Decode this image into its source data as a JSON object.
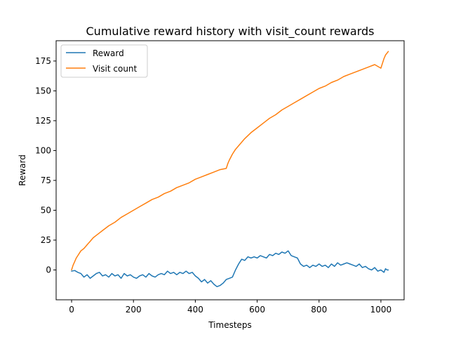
{
  "chart_data": {
    "type": "line",
    "title": "Cumulative reward history with visit_count rewards",
    "xlabel": "Timesteps",
    "ylabel": "Reward",
    "xlim": [
      -50,
      1075
    ],
    "ylim": [
      -25,
      192
    ],
    "xticks": [
      0,
      200,
      400,
      600,
      800,
      1000
    ],
    "yticks": [
      0,
      25,
      50,
      75,
      100,
      125,
      150,
      175
    ],
    "grid": false,
    "legend_position": "top-left",
    "series": [
      {
        "name": "Reward",
        "color": "#1f77b4",
        "points": [
          [
            0,
            -1
          ],
          [
            10,
            -0.5
          ],
          [
            20,
            -2
          ],
          [
            30,
            -3
          ],
          [
            40,
            -6
          ],
          [
            50,
            -4
          ],
          [
            60,
            -7
          ],
          [
            70,
            -5
          ],
          [
            80,
            -3
          ],
          [
            90,
            -2
          ],
          [
            100,
            -5
          ],
          [
            110,
            -4
          ],
          [
            120,
            -6
          ],
          [
            130,
            -3
          ],
          [
            140,
            -5
          ],
          [
            150,
            -4
          ],
          [
            160,
            -7
          ],
          [
            170,
            -3
          ],
          [
            180,
            -5
          ],
          [
            190,
            -4
          ],
          [
            200,
            -6
          ],
          [
            210,
            -7
          ],
          [
            220,
            -5
          ],
          [
            230,
            -4
          ],
          [
            240,
            -6
          ],
          [
            250,
            -3
          ],
          [
            260,
            -5
          ],
          [
            270,
            -6
          ],
          [
            280,
            -4
          ],
          [
            290,
            -3
          ],
          [
            300,
            -4
          ],
          [
            310,
            -1
          ],
          [
            320,
            -3
          ],
          [
            330,
            -2
          ],
          [
            340,
            -4
          ],
          [
            350,
            -2
          ],
          [
            360,
            -3
          ],
          [
            370,
            -1
          ],
          [
            380,
            -3
          ],
          [
            390,
            -2
          ],
          [
            400,
            -5
          ],
          [
            410,
            -7
          ],
          [
            420,
            -10
          ],
          [
            430,
            -8
          ],
          [
            440,
            -11
          ],
          [
            450,
            -9
          ],
          [
            460,
            -12
          ],
          [
            470,
            -14
          ],
          [
            480,
            -13
          ],
          [
            490,
            -11
          ],
          [
            500,
            -8
          ],
          [
            510,
            -7
          ],
          [
            520,
            -6
          ],
          [
            530,
            0
          ],
          [
            540,
            5
          ],
          [
            550,
            9
          ],
          [
            560,
            8
          ],
          [
            570,
            11
          ],
          [
            580,
            10
          ],
          [
            590,
            11
          ],
          [
            600,
            10
          ],
          [
            610,
            12
          ],
          [
            620,
            11
          ],
          [
            630,
            10
          ],
          [
            640,
            13
          ],
          [
            650,
            12
          ],
          [
            660,
            14
          ],
          [
            670,
            13
          ],
          [
            680,
            15
          ],
          [
            690,
            14
          ],
          [
            700,
            16
          ],
          [
            710,
            12
          ],
          [
            720,
            11
          ],
          [
            730,
            10
          ],
          [
            740,
            5
          ],
          [
            750,
            3
          ],
          [
            760,
            4
          ],
          [
            770,
            2
          ],
          [
            780,
            4
          ],
          [
            790,
            3
          ],
          [
            800,
            5
          ],
          [
            810,
            3
          ],
          [
            820,
            4
          ],
          [
            830,
            2
          ],
          [
            840,
            5
          ],
          [
            850,
            3
          ],
          [
            860,
            6
          ],
          [
            870,
            4
          ],
          [
            880,
            5
          ],
          [
            890,
            6
          ],
          [
            900,
            5
          ],
          [
            910,
            4
          ],
          [
            920,
            3
          ],
          [
            930,
            5
          ],
          [
            940,
            2
          ],
          [
            950,
            3
          ],
          [
            960,
            1
          ],
          [
            970,
            0
          ],
          [
            980,
            2
          ],
          [
            990,
            -1
          ],
          [
            1000,
            0
          ],
          [
            1010,
            -2
          ],
          [
            1015,
            1
          ],
          [
            1020,
            0
          ],
          [
            1024,
            0
          ]
        ]
      },
      {
        "name": "Visit count",
        "color": "#ff7f0e",
        "points": [
          [
            0,
            0
          ],
          [
            5,
            4
          ],
          [
            10,
            7
          ],
          [
            15,
            10
          ],
          [
            20,
            12
          ],
          [
            25,
            14
          ],
          [
            30,
            16
          ],
          [
            40,
            18
          ],
          [
            50,
            21
          ],
          [
            60,
            24
          ],
          [
            70,
            27
          ],
          [
            80,
            29
          ],
          [
            90,
            31
          ],
          [
            100,
            33
          ],
          [
            120,
            37
          ],
          [
            140,
            40
          ],
          [
            160,
            44
          ],
          [
            180,
            47
          ],
          [
            200,
            50
          ],
          [
            220,
            53
          ],
          [
            240,
            56
          ],
          [
            260,
            59
          ],
          [
            280,
            61
          ],
          [
            300,
            64
          ],
          [
            320,
            66
          ],
          [
            340,
            69
          ],
          [
            360,
            71
          ],
          [
            380,
            73
          ],
          [
            400,
            76
          ],
          [
            420,
            78
          ],
          [
            440,
            80
          ],
          [
            460,
            82
          ],
          [
            480,
            84
          ],
          [
            500,
            85
          ],
          [
            505,
            89
          ],
          [
            510,
            92
          ],
          [
            520,
            97
          ],
          [
            530,
            101
          ],
          [
            540,
            104
          ],
          [
            550,
            107
          ],
          [
            560,
            110
          ],
          [
            580,
            115
          ],
          [
            600,
            119
          ],
          [
            620,
            123
          ],
          [
            640,
            127
          ],
          [
            660,
            130
          ],
          [
            680,
            134
          ],
          [
            700,
            137
          ],
          [
            720,
            140
          ],
          [
            740,
            143
          ],
          [
            760,
            146
          ],
          [
            780,
            149
          ],
          [
            800,
            152
          ],
          [
            820,
            154
          ],
          [
            840,
            157
          ],
          [
            860,
            159
          ],
          [
            880,
            162
          ],
          [
            900,
            164
          ],
          [
            920,
            166
          ],
          [
            940,
            168
          ],
          [
            960,
            170
          ],
          [
            980,
            172
          ],
          [
            1000,
            169
          ],
          [
            1005,
            173
          ],
          [
            1010,
            177
          ],
          [
            1015,
            180
          ],
          [
            1024,
            183
          ]
        ]
      }
    ]
  }
}
